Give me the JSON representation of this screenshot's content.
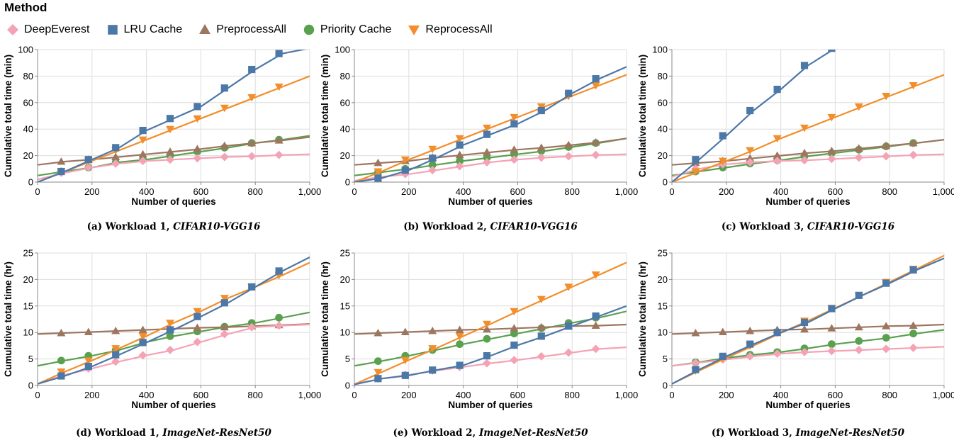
{
  "legend": {
    "title": "Method",
    "items": [
      {
        "name": "DeepEverest",
        "color": "#f4a3b5",
        "marker": "diamond"
      },
      {
        "name": "LRU Cache",
        "color": "#4c78a8",
        "marker": "square"
      },
      {
        "name": "PreprocessAll",
        "color": "#9d7660",
        "marker": "triangle-up"
      },
      {
        "name": "Priority Cache",
        "color": "#59a14f",
        "marker": "circle"
      },
      {
        "name": "ReprocessAll",
        "color": "#f28e2b",
        "marker": "triangle-down"
      }
    ]
  },
  "captions": [
    {
      "prefix": "(a) Workload 1, ",
      "dataset": "CIFAR10-VGG16"
    },
    {
      "prefix": "(b) Workload 2, ",
      "dataset": "CIFAR10-VGG16"
    },
    {
      "prefix": "(c) Workload 3, ",
      "dataset": "CIFAR10-VGG16"
    },
    {
      "prefix": "(d) Workload 1, ",
      "dataset": "ImageNet-ResNet50"
    },
    {
      "prefix": "(e) Workload 2, ",
      "dataset": "ImageNet-ResNet50"
    },
    {
      "prefix": "(f) Workload 3, ",
      "dataset": "ImageNet-ResNet50"
    }
  ],
  "chart_data": [
    {
      "type": "line",
      "xlabel": "Number of queries",
      "ylabel": "Cumulative total time (min)",
      "xlim": [
        0,
        1000
      ],
      "ylim": [
        0,
        100
      ],
      "xticks": [
        0,
        200,
        400,
        600,
        800,
        1000
      ],
      "xtick_labels": [
        "0",
        "200",
        "400",
        "600",
        "800",
        "1,000"
      ],
      "yticks": [
        0,
        20,
        40,
        60,
        80,
        100
      ],
      "ytick_labels": [
        "0",
        "20",
        "40",
        "60",
        "80",
        "100"
      ],
      "x": [
        0,
        100,
        200,
        300,
        400,
        500,
        600,
        700,
        800,
        900,
        1000
      ],
      "series": [
        {
          "name": "DeepEverest",
          "values": [
            2,
            7,
            11,
            14,
            16,
            17,
            18,
            19,
            19.5,
            20.5,
            21
          ]
        },
        {
          "name": "LRU Cache",
          "values": [
            0,
            8,
            17,
            26,
            39,
            48,
            57,
            71,
            85,
            97,
            101
          ]
        },
        {
          "name": "PreprocessAll",
          "values": [
            13,
            15.5,
            17,
            19,
            21,
            23,
            25,
            27.5,
            29.5,
            31.5,
            34
          ]
        },
        {
          "name": "Priority Cache",
          "values": [
            5,
            8,
            11,
            15,
            17,
            20,
            23,
            26,
            29.5,
            32,
            35
          ]
        },
        {
          "name": "ReprocessAll",
          "values": [
            0,
            8,
            16,
            24,
            32,
            40,
            48,
            56,
            64,
            72,
            80
          ]
        }
      ]
    },
    {
      "type": "line",
      "xlabel": "Number of queries",
      "ylabel": "Cumulative total time (min)",
      "xlim": [
        0,
        1000
      ],
      "ylim": [
        0,
        100
      ],
      "xticks": [
        0,
        200,
        400,
        600,
        800,
        1000
      ],
      "xtick_labels": [
        "0",
        "200",
        "400",
        "600",
        "800",
        "1,000"
      ],
      "yticks": [
        0,
        20,
        40,
        60,
        80,
        100
      ],
      "ytick_labels": [
        "0",
        "20",
        "40",
        "60",
        "80",
        "100"
      ],
      "x": [
        0,
        100,
        200,
        300,
        400,
        500,
        600,
        700,
        800,
        900,
        1000
      ],
      "series": [
        {
          "name": "DeepEverest",
          "values": [
            1,
            4,
            6,
            9,
            12,
            15,
            17,
            18.5,
            19.5,
            20.5,
            21
          ]
        },
        {
          "name": "LRU Cache",
          "values": [
            0,
            3,
            9,
            18,
            28,
            36,
            44,
            54,
            67,
            78,
            87
          ]
        },
        {
          "name": "PreprocessAll",
          "values": [
            13,
            14.5,
            16,
            18.5,
            20.5,
            22.5,
            24.5,
            26,
            28,
            30,
            33
          ]
        },
        {
          "name": "Priority Cache",
          "values": [
            5,
            7.5,
            10,
            13,
            16,
            18.5,
            21,
            23.5,
            26.5,
            29.5,
            33
          ]
        },
        {
          "name": "ReprocessAll",
          "values": [
            0,
            8,
            17,
            25,
            33,
            41,
            49,
            57,
            65,
            73,
            81
          ]
        }
      ]
    },
    {
      "type": "line",
      "xlabel": "Number of queries",
      "ylabel": "Cumulative total time (min)",
      "xlim": [
        0,
        1000
      ],
      "ylim": [
        0,
        100
      ],
      "xticks": [
        0,
        200,
        400,
        600,
        800,
        1000
      ],
      "xtick_labels": [
        "0",
        "200",
        "400",
        "600",
        "800",
        "1,000"
      ],
      "yticks": [
        0,
        20,
        40,
        60,
        80,
        100
      ],
      "ytick_labels": [
        "0",
        "20",
        "40",
        "60",
        "80",
        "100"
      ],
      "x": [
        0,
        100,
        200,
        300,
        400,
        500,
        600,
        700,
        800,
        900,
        1000
      ],
      "series": [
        {
          "name": "DeepEverest",
          "values": [
            4,
            10,
            13.5,
            15,
            16,
            16.5,
            17.5,
            18.5,
            19.5,
            20.5,
            21
          ]
        },
        {
          "name": "LRU Cache",
          "values": [
            0,
            17,
            35,
            54,
            70,
            88,
            101,
            null,
            null,
            null,
            null
          ]
        },
        {
          "name": "PreprocessAll",
          "values": [
            13,
            14.5,
            16,
            18,
            20,
            22,
            23.5,
            25.5,
            27.5,
            29.5,
            32
          ]
        },
        {
          "name": "Priority Cache",
          "values": [
            5,
            8,
            11,
            14,
            16.5,
            19.5,
            22,
            24.5,
            27,
            29.5,
            32
          ]
        },
        {
          "name": "ReprocessAll",
          "values": [
            0,
            8,
            16,
            24,
            33,
            41,
            49,
            57,
            65,
            73,
            81
          ]
        }
      ]
    },
    {
      "type": "line",
      "xlabel": "Number of queries",
      "ylabel": "Cumulative total time (hr)",
      "xlim": [
        0,
        1000
      ],
      "ylim": [
        0,
        25
      ],
      "xticks": [
        0,
        200,
        400,
        600,
        800,
        1000
      ],
      "xtick_labels": [
        "0",
        "200",
        "400",
        "600",
        "800",
        "1,000"
      ],
      "yticks": [
        0,
        5,
        10,
        15,
        20,
        25
      ],
      "ytick_labels": [
        "0",
        "5",
        "10",
        "15",
        "20",
        "25"
      ],
      "x": [
        0,
        100,
        200,
        300,
        400,
        500,
        600,
        700,
        800,
        900,
        1000
      ],
      "series": [
        {
          "name": "DeepEverest",
          "values": [
            0.3,
            2,
            3.2,
            4.5,
            5.7,
            6.7,
            8.2,
            9.7,
            11.0,
            11.3,
            11.5
          ]
        },
        {
          "name": "LRU Cache",
          "values": [
            0.3,
            1.8,
            3.6,
            5.8,
            8.1,
            10.5,
            13.0,
            15.6,
            18.6,
            21.6,
            24.2
          ]
        },
        {
          "name": "PreprocessAll",
          "values": [
            9.7,
            9.9,
            10.1,
            10.3,
            10.5,
            10.7,
            10.9,
            11.0,
            11.2,
            11.4,
            11.6
          ]
        },
        {
          "name": "Priority Cache",
          "values": [
            3.7,
            4.7,
            5.6,
            6.7,
            8.2,
            9.3,
            10.2,
            11.1,
            11.8,
            12.8,
            13.8
          ]
        },
        {
          "name": "ReprocessAll",
          "values": [
            0.3,
            2.6,
            4.7,
            7.0,
            9.3,
            11.8,
            14.0,
            16.5,
            18.6,
            20.8,
            23.2
          ]
        }
      ]
    },
    {
      "type": "line",
      "xlabel": "Number of queries",
      "ylabel": "Cumulative total time (hr)",
      "xlim": [
        0,
        1000
      ],
      "ylim": [
        0,
        25
      ],
      "xticks": [
        0,
        200,
        400,
        600,
        800,
        1000
      ],
      "xtick_labels": [
        "0",
        "200",
        "400",
        "600",
        "800",
        "1,000"
      ],
      "yticks": [
        0,
        5,
        10,
        15,
        20,
        25
      ],
      "ytick_labels": [
        "0",
        "5",
        "10",
        "15",
        "20",
        "25"
      ],
      "x": [
        0,
        100,
        200,
        300,
        400,
        500,
        600,
        700,
        800,
        900,
        1000
      ],
      "series": [
        {
          "name": "DeepEverest",
          "values": [
            0.2,
            1.3,
            2.0,
            2.8,
            3.5,
            4.2,
            4.8,
            5.5,
            6.2,
            6.9,
            7.2
          ]
        },
        {
          "name": "LRU Cache",
          "values": [
            0.2,
            1.3,
            1.9,
            2.9,
            3.8,
            5.6,
            7.6,
            9.3,
            11.2,
            13.1,
            15.0
          ]
        },
        {
          "name": "PreprocessAll",
          "values": [
            9.7,
            9.9,
            10.1,
            10.3,
            10.5,
            10.6,
            10.8,
            11.0,
            11.2,
            11.3,
            11.5
          ]
        },
        {
          "name": "Priority Cache",
          "values": [
            3.7,
            4.6,
            5.6,
            6.7,
            7.8,
            8.8,
            9.8,
            10.8,
            11.8,
            12.8,
            14.0
          ]
        },
        {
          "name": "ReprocessAll",
          "values": [
            0.2,
            2.5,
            4.8,
            7.0,
            9.3,
            11.6,
            14.0,
            16.3,
            18.6,
            20.9,
            23.2
          ]
        }
      ]
    },
    {
      "type": "line",
      "xlabel": "Number of queries",
      "ylabel": "Cumulative total time (hr)",
      "xlim": [
        0,
        1000
      ],
      "ylim": [
        0,
        25
      ],
      "xticks": [
        0,
        200,
        400,
        600,
        800,
        1000
      ],
      "xtick_labels": [
        "0",
        "200",
        "400",
        "600",
        "800",
        "1,000"
      ],
      "yticks": [
        0,
        5,
        10,
        15,
        20,
        25
      ],
      "ytick_labels": [
        "0",
        "5",
        "10",
        "15",
        "20",
        "25"
      ],
      "x": [
        0,
        100,
        200,
        300,
        400,
        500,
        600,
        700,
        800,
        900,
        1000
      ],
      "series": [
        {
          "name": "DeepEverest",
          "values": [
            3.7,
            4.3,
            4.9,
            5.5,
            6.0,
            6.3,
            6.5,
            6.7,
            6.9,
            7.1,
            7.3
          ]
        },
        {
          "name": "LRU Cache",
          "values": [
            0.3,
            3.0,
            5.5,
            7.8,
            10.0,
            11.9,
            14.5,
            17.0,
            19.3,
            21.8,
            24.0
          ]
        },
        {
          "name": "PreprocessAll",
          "values": [
            9.7,
            9.9,
            10.1,
            10.3,
            10.5,
            10.6,
            10.8,
            11.0,
            11.2,
            11.3,
            11.5
          ]
        },
        {
          "name": "Priority Cache",
          "values": [
            3.7,
            4.4,
            5.2,
            5.8,
            6.3,
            7.0,
            7.8,
            8.4,
            9.0,
            9.8,
            10.5
          ]
        },
        {
          "name": "ReprocessAll",
          "values": [
            0.3,
            2.8,
            5.2,
            7.5,
            9.9,
            12.2,
            14.6,
            17.0,
            19.5,
            22.0,
            24.5
          ]
        }
      ]
    }
  ]
}
